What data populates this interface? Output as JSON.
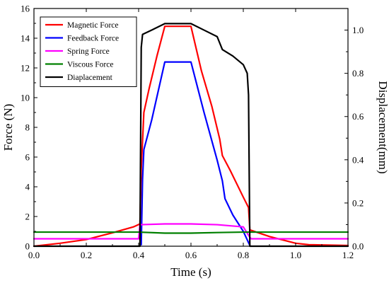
{
  "chart_data": {
    "type": "line",
    "xlabel": "Time (s)",
    "ylabel_left": "Force (N)",
    "ylabel_right": "Displacement(mm)",
    "xlim": [
      0,
      1.2
    ],
    "ylim_left": [
      0,
      16
    ],
    "ylim_right": [
      0,
      1.1
    ],
    "x_ticks": [
      0.0,
      0.2,
      0.4,
      0.6,
      0.8,
      1.0,
      1.2
    ],
    "x_tick_labels": [
      "0.0",
      "0.2",
      "0.4",
      "0.6",
      "0.8",
      "1.0",
      "1.2"
    ],
    "y_left_ticks": [
      0,
      2,
      4,
      6,
      8,
      10,
      12,
      14,
      16
    ],
    "y_left_tick_labels": [
      "0",
      "2",
      "4",
      "6",
      "8",
      "10",
      "12",
      "14",
      "16"
    ],
    "y_right_ticks": [
      0.0,
      0.2,
      0.4,
      0.6,
      0.8,
      1.0
    ],
    "y_right_tick_labels": [
      "0.0",
      "0.2",
      "0.4",
      "0.6",
      "0.8",
      "1.0"
    ],
    "grid": false,
    "legend_placement": "top-left",
    "series": [
      {
        "name": "Magnetic Force",
        "color": "#ff0000",
        "axis": "left",
        "points": [
          [
            0.0,
            0.0
          ],
          [
            0.1,
            0.2
          ],
          [
            0.2,
            0.45
          ],
          [
            0.3,
            0.9
          ],
          [
            0.38,
            1.3
          ],
          [
            0.405,
            1.5
          ],
          [
            0.41,
            5.2
          ],
          [
            0.42,
            9.0
          ],
          [
            0.44,
            10.6
          ],
          [
            0.47,
            12.8
          ],
          [
            0.5,
            14.8
          ],
          [
            0.6,
            14.8
          ],
          [
            0.64,
            11.8
          ],
          [
            0.68,
            9.4
          ],
          [
            0.71,
            7.2
          ],
          [
            0.72,
            6.1
          ],
          [
            0.75,
            5.1
          ],
          [
            0.8,
            3.3
          ],
          [
            0.82,
            2.6
          ],
          [
            0.825,
            1.1
          ],
          [
            0.9,
            0.65
          ],
          [
            1.0,
            0.2
          ],
          [
            1.05,
            0.1
          ],
          [
            1.2,
            0.05
          ]
        ]
      },
      {
        "name": "Feedback Force",
        "color": "#0000ff",
        "axis": "left",
        "points": [
          [
            0.41,
            0.1
          ],
          [
            0.415,
            4.5
          ],
          [
            0.42,
            6.5
          ],
          [
            0.45,
            8.5
          ],
          [
            0.5,
            12.4
          ],
          [
            0.6,
            12.4
          ],
          [
            0.65,
            9.0
          ],
          [
            0.7,
            5.8
          ],
          [
            0.72,
            4.4
          ],
          [
            0.73,
            3.2
          ],
          [
            0.76,
            2.1
          ],
          [
            0.8,
            1.0
          ],
          [
            0.825,
            0.05
          ]
        ]
      },
      {
        "name": "Spring Force",
        "color": "#ff00ff",
        "axis": "left",
        "points": [
          [
            0.0,
            0.5
          ],
          [
            0.4,
            0.5
          ],
          [
            0.405,
            1.45
          ],
          [
            0.5,
            1.5
          ],
          [
            0.6,
            1.5
          ],
          [
            0.7,
            1.45
          ],
          [
            0.8,
            1.3
          ],
          [
            0.825,
            0.6
          ],
          [
            0.83,
            0.5
          ],
          [
            1.2,
            0.5
          ]
        ]
      },
      {
        "name": "Viscous Force",
        "color": "#008000",
        "axis": "left",
        "points": [
          [
            0.0,
            0.95
          ],
          [
            0.4,
            0.95
          ],
          [
            0.5,
            0.88
          ],
          [
            0.6,
            0.88
          ],
          [
            0.7,
            0.92
          ],
          [
            0.8,
            0.95
          ],
          [
            1.2,
            0.95
          ]
        ]
      },
      {
        "name": "Diaplacement",
        "color": "#000000",
        "axis": "right",
        "points": [
          [
            0.0,
            0.0
          ],
          [
            0.4,
            0.0
          ],
          [
            0.405,
            0.0
          ],
          [
            0.41,
            0.92
          ],
          [
            0.415,
            0.98
          ],
          [
            0.45,
            1.0
          ],
          [
            0.5,
            1.03
          ],
          [
            0.6,
            1.03
          ],
          [
            0.65,
            1.0
          ],
          [
            0.7,
            0.97
          ],
          [
            0.71,
            0.94
          ],
          [
            0.72,
            0.91
          ],
          [
            0.76,
            0.88
          ],
          [
            0.8,
            0.84
          ],
          [
            0.815,
            0.8
          ],
          [
            0.82,
            0.7
          ],
          [
            0.825,
            0.0
          ],
          [
            1.2,
            0.0
          ]
        ]
      }
    ]
  }
}
